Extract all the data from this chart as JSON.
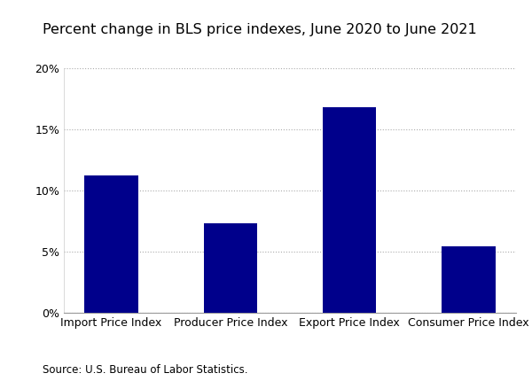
{
  "title": "Percent change in BLS price indexes, June 2020 to June 2021",
  "categories": [
    "Import Price Index",
    "Producer Price Index",
    "Export Price Index",
    "Consumer Price Index"
  ],
  "values": [
    11.2,
    7.3,
    16.8,
    5.4
  ],
  "bar_color": "#00008B",
  "ylim": [
    0,
    20
  ],
  "yticks": [
    0,
    5,
    10,
    15,
    20
  ],
  "source_text": "Source: U.S. Bureau of Labor Statistics.",
  "background_color": "#ffffff",
  "title_fontsize": 11.5,
  "tick_fontsize": 9,
  "source_fontsize": 8.5,
  "bar_width": 0.45
}
